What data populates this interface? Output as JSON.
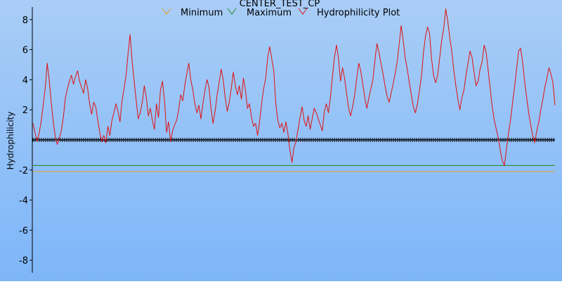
{
  "chart_data": {
    "type": "line",
    "title": "CENTER_TEST_CP",
    "ylabel": "Hydrophilicity",
    "xlabel": "",
    "ylim": [
      -9,
      9
    ],
    "yticks": [
      8,
      6,
      4,
      2,
      -2,
      -4,
      -6,
      -8
    ],
    "ytick_labels": [
      "8",
      "6",
      "4",
      "2",
      "-2",
      "-4",
      "-6",
      "-8"
    ],
    "legend": [
      "Minimum",
      "Maximum",
      "Hydrophilicity Plot"
    ],
    "legend_position": "top",
    "background": {
      "top": "#a9cdf6",
      "bottom": "#7db6f9"
    },
    "series": [
      {
        "name": "Minimum",
        "color": "#e6a020",
        "constant": -2.1
      },
      {
        "name": "Maximum",
        "color": "#1a8a1a",
        "constant": -1.7
      },
      {
        "name": "Hydrophilicity Plot",
        "color": "#e01010",
        "values": [
          1.1,
          0.5,
          -0.1,
          0.4,
          1.2,
          2.3,
          3.4,
          5.1,
          4.0,
          2.5,
          1.2,
          0.2,
          -0.3,
          0.1,
          0.6,
          1.5,
          2.8,
          3.4,
          3.9,
          4.3,
          3.7,
          4.2,
          4.6,
          3.9,
          3.5,
          3.1,
          4.0,
          3.4,
          2.4,
          1.7,
          2.5,
          2.2,
          1.3,
          0.5,
          -0.1,
          0.3,
          -0.2,
          0.9,
          0.3,
          1.3,
          1.8,
          2.4,
          1.9,
          1.2,
          2.6,
          3.4,
          4.3,
          5.8,
          7.0,
          5.2,
          3.9,
          2.6,
          1.4,
          1.8,
          2.5,
          3.6,
          2.8,
          1.6,
          2.1,
          1.3,
          0.7,
          2.4,
          1.5,
          3.3,
          3.9,
          2.6,
          0.5,
          1.2,
          -0.1,
          0.6,
          1.0,
          1.3,
          2.0,
          3.0,
          2.6,
          3.6,
          4.4,
          5.1,
          4.0,
          3.3,
          2.4,
          1.8,
          2.3,
          1.4,
          2.4,
          3.3,
          4.0,
          3.5,
          2.1,
          1.1,
          1.9,
          3.0,
          3.8,
          4.7,
          4.0,
          2.8,
          1.9,
          2.5,
          3.4,
          4.5,
          3.6,
          3.0,
          3.6,
          2.7,
          4.1,
          3.3,
          2.1,
          2.4,
          1.5,
          0.9,
          1.1,
          0.3,
          1.2,
          2.4,
          3.4,
          4.1,
          5.5,
          6.2,
          5.4,
          4.6,
          2.4,
          1.3,
          0.8,
          1.1,
          0.5,
          1.2,
          0.4,
          -0.7,
          -1.5,
          -0.5,
          -0.1,
          0.7,
          1.5,
          2.2,
          1.3,
          0.9,
          1.6,
          0.7,
          1.4,
          2.1,
          1.8,
          1.4,
          1.0,
          0.6,
          1.9,
          2.4,
          1.8,
          2.8,
          4.2,
          5.5,
          6.3,
          5.4,
          3.9,
          4.8,
          4.1,
          3.1,
          2.1,
          1.6,
          2.2,
          3.0,
          4.1,
          5.1,
          4.6,
          3.7,
          2.8,
          2.1,
          2.8,
          3.4,
          4.0,
          5.3,
          6.4,
          5.8,
          5.1,
          4.4,
          3.6,
          2.9,
          2.5,
          3.1,
          3.7,
          4.4,
          5.2,
          6.4,
          7.6,
          6.6,
          5.4,
          4.7,
          3.8,
          3.0,
          2.2,
          1.8,
          2.4,
          3.3,
          4.2,
          5.8,
          6.9,
          7.5,
          7.1,
          5.4,
          4.3,
          3.8,
          4.3,
          5.4,
          6.6,
          7.4,
          8.7,
          7.9,
          6.8,
          5.9,
          4.6,
          3.6,
          2.7,
          2.0,
          2.8,
          3.3,
          4.3,
          5.1,
          5.9,
          5.5,
          4.5,
          3.6,
          3.9,
          4.7,
          5.2,
          6.3,
          5.8,
          4.6,
          3.4,
          2.2,
          1.3,
          0.7,
          0.1,
          -0.7,
          -1.4,
          -1.7,
          -0.6,
          0.4,
          1.3,
          2.4,
          3.5,
          4.7,
          5.9,
          6.1,
          5.2,
          3.9,
          2.8,
          1.8,
          1.0,
          0.3,
          -0.2,
          0.6,
          1.2,
          2.0,
          2.7,
          3.5,
          4.1,
          4.8,
          4.4,
          3.8,
          2.3
        ]
      }
    ],
    "baseline": {
      "value": 0,
      "style": "black tick marks"
    }
  }
}
